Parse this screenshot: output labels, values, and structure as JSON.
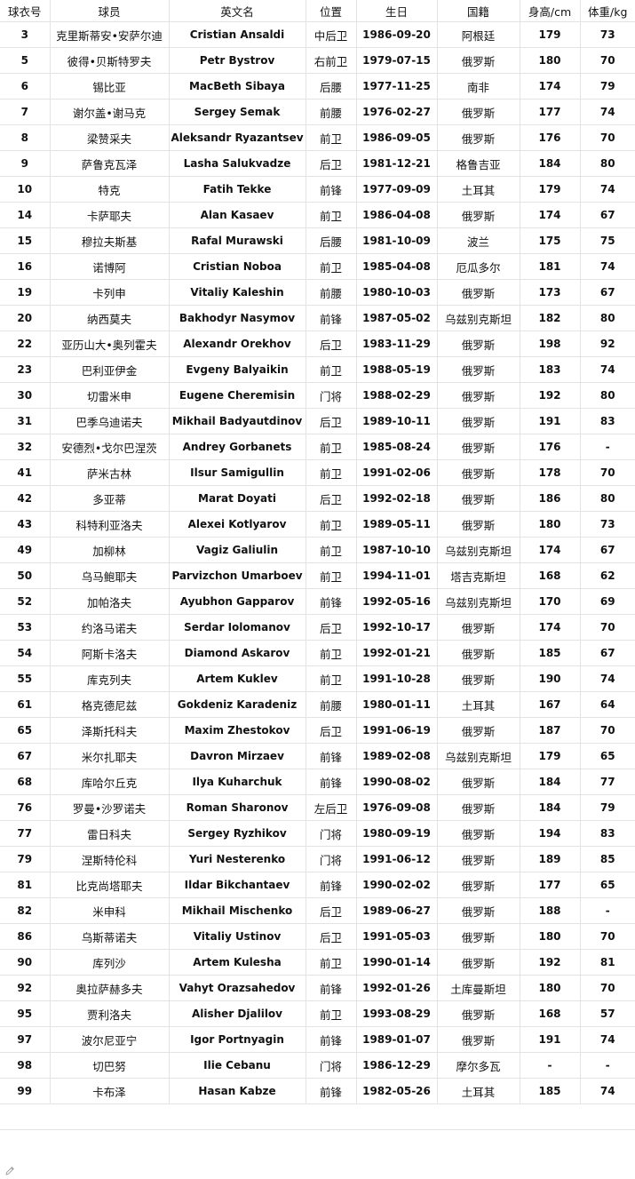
{
  "table": {
    "headers": [
      "球衣号",
      "球员",
      "英文名",
      "位置",
      "生日",
      "国籍",
      "身高/cm",
      "体重/kg"
    ],
    "rows": [
      [
        "3",
        "克里斯蒂安•安萨尔迪",
        "Cristian Ansaldi",
        "中后卫",
        "1986-09-20",
        "阿根廷",
        "179",
        "73"
      ],
      [
        "5",
        "彼得•贝斯特罗夫",
        "Petr Bystrov",
        "右前卫",
        "1979-07-15",
        "俄罗斯",
        "180",
        "70"
      ],
      [
        "6",
        "锡比亚",
        "MacBeth Sibaya",
        "后腰",
        "1977-11-25",
        "南非",
        "174",
        "79"
      ],
      [
        "7",
        "谢尔盖•谢马克",
        "Sergey Semak",
        "前腰",
        "1976-02-27",
        "俄罗斯",
        "177",
        "74"
      ],
      [
        "8",
        "梁赞采夫",
        "Aleksandr Ryazantsev",
        "前卫",
        "1986-09-05",
        "俄罗斯",
        "176",
        "70"
      ],
      [
        "9",
        "萨鲁克瓦泽",
        "Lasha Salukvadze",
        "后卫",
        "1981-12-21",
        "格鲁吉亚",
        "184",
        "80"
      ],
      [
        "10",
        "特克",
        "Fatih Tekke",
        "前锋",
        "1977-09-09",
        "土耳其",
        "179",
        "74"
      ],
      [
        "14",
        "卡萨耶夫",
        "Alan Kasaev",
        "前卫",
        "1986-04-08",
        "俄罗斯",
        "174",
        "67"
      ],
      [
        "15",
        "穆拉夫斯基",
        "Rafal Murawski",
        "后腰",
        "1981-10-09",
        "波兰",
        "175",
        "75"
      ],
      [
        "16",
        "诺博阿",
        "Cristian Noboa",
        "前卫",
        "1985-04-08",
        "厄瓜多尔",
        "181",
        "74"
      ],
      [
        "19",
        "卡列申",
        "Vitaliy Kaleshin",
        "前腰",
        "1980-10-03",
        "俄罗斯",
        "173",
        "67"
      ],
      [
        "20",
        "纳西莫夫",
        "Bakhodyr Nasymov",
        "前锋",
        "1987-05-02",
        "乌兹别克斯坦",
        "182",
        "80"
      ],
      [
        "22",
        "亚历山大•奥列霍夫",
        "Alexandr Orekhov",
        "后卫",
        "1983-11-29",
        "俄罗斯",
        "198",
        "92"
      ],
      [
        "23",
        "巴利亚伊金",
        "Evgeny Balyaikin",
        "前卫",
        "1988-05-19",
        "俄罗斯",
        "183",
        "74"
      ],
      [
        "30",
        "切雷米申",
        "Eugene Cheremisin",
        "门将",
        "1988-02-29",
        "俄罗斯",
        "192",
        "80"
      ],
      [
        "31",
        "巴季乌迪诺夫",
        "Mikhail Badyautdinov",
        "后卫",
        "1989-10-11",
        "俄罗斯",
        "191",
        "83"
      ],
      [
        "32",
        "安德烈•戈尔巴涅茨",
        "Andrey Gorbanets",
        "前卫",
        "1985-08-24",
        "俄罗斯",
        "176",
        "-"
      ],
      [
        "41",
        "萨米古林",
        "Ilsur Samigullin",
        "前卫",
        "1991-02-06",
        "俄罗斯",
        "178",
        "70"
      ],
      [
        "42",
        "多亚蒂",
        "Marat Doyati",
        "后卫",
        "1992-02-18",
        "俄罗斯",
        "186",
        "80"
      ],
      [
        "43",
        "科特利亚洛夫",
        "Alexei Kotlyarov",
        "前卫",
        "1989-05-11",
        "俄罗斯",
        "180",
        "73"
      ],
      [
        "49",
        "加柳林",
        "Vagiz Galiulin",
        "前卫",
        "1987-10-10",
        "乌兹别克斯坦",
        "174",
        "67"
      ],
      [
        "50",
        "乌马鲍耶夫",
        "Parvizchon Umarboev",
        "前卫",
        "1994-11-01",
        "塔吉克斯坦",
        "168",
        "62"
      ],
      [
        "52",
        "加帕洛夫",
        "Ayubhon Gapparov",
        "前锋",
        "1992-05-16",
        "乌兹别克斯坦",
        "170",
        "69"
      ],
      [
        "53",
        "约洛马诺夫",
        "Serdar Iolomanov",
        "后卫",
        "1992-10-17",
        "俄罗斯",
        "174",
        "70"
      ],
      [
        "54",
        "阿斯卡洛夫",
        "Diamond Askarov",
        "前卫",
        "1992-01-21",
        "俄罗斯",
        "185",
        "67"
      ],
      [
        "55",
        "库克列夫",
        "Artem Kuklev",
        "前卫",
        "1991-10-28",
        "俄罗斯",
        "190",
        "74"
      ],
      [
        "61",
        "格克德尼兹",
        "Gokdeniz Karadeniz",
        "前腰",
        "1980-01-11",
        "土耳其",
        "167",
        "64"
      ],
      [
        "65",
        "泽斯托科夫",
        "Maxim Zhestokov",
        "后卫",
        "1991-06-19",
        "俄罗斯",
        "187",
        "70"
      ],
      [
        "67",
        "米尔扎耶夫",
        "Davron Mirzaev",
        "前锋",
        "1989-02-08",
        "乌兹别克斯坦",
        "179",
        "65"
      ],
      [
        "68",
        "库哈尔丘克",
        "Ilya Kuharchuk",
        "前锋",
        "1990-08-02",
        "俄罗斯",
        "184",
        "77"
      ],
      [
        "76",
        "罗曼•沙罗诺夫",
        "Roman Sharonov",
        "左后卫",
        "1976-09-08",
        "俄罗斯",
        "184",
        "79"
      ],
      [
        "77",
        "雷日科夫",
        "Sergey Ryzhikov",
        "门将",
        "1980-09-19",
        "俄罗斯",
        "194",
        "83"
      ],
      [
        "79",
        "涅斯特伦科",
        "Yuri Nesterenko",
        "门将",
        "1991-06-12",
        "俄罗斯",
        "189",
        "85"
      ],
      [
        "81",
        "比克尚塔耶夫",
        "Ildar Bikchantaev",
        "前锋",
        "1990-02-02",
        "俄罗斯",
        "177",
        "65"
      ],
      [
        "82",
        "米申科",
        "Mikhail Mischenko",
        "后卫",
        "1989-06-27",
        "俄罗斯",
        "188",
        "-"
      ],
      [
        "86",
        "乌斯蒂诺夫",
        "Vitaliy Ustinov",
        "后卫",
        "1991-05-03",
        "俄罗斯",
        "180",
        "70"
      ],
      [
        "90",
        "库列沙",
        "Artem Kulesha",
        "前卫",
        "1990-01-14",
        "俄罗斯",
        "192",
        "81"
      ],
      [
        "92",
        "奥拉萨赫多夫",
        "Vahyt Orazsahedov",
        "前锋",
        "1992-01-26",
        "土库曼斯坦",
        "180",
        "70"
      ],
      [
        "95",
        "贾利洛夫",
        "Alisher Djalilov",
        "前卫",
        "1993-08-29",
        "俄罗斯",
        "168",
        "57"
      ],
      [
        "97",
        "波尔尼亚宁",
        "Igor Portnyagin",
        "前锋",
        "1989-01-07",
        "俄罗斯",
        "191",
        "74"
      ],
      [
        "98",
        "切巴努",
        "Ilie Cebanu",
        "门将",
        "1986-12-29",
        "摩尔多瓦",
        "-",
        "-"
      ],
      [
        "99",
        "卡布泽",
        "Hasan Kabze",
        "前锋",
        "1982-05-26",
        "土耳其",
        "185",
        "74"
      ]
    ]
  },
  "icons": {
    "edit": "pencil-icon"
  }
}
